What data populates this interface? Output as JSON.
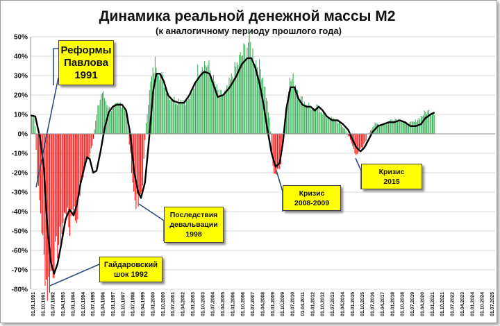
{
  "chart_data": {
    "type": "bar",
    "title": "Динамика реальной денежной массы М2",
    "subtitle": "(к аналогичному  периоду  прошлого  года)",
    "y_unit": "%",
    "ylim": [
      -80,
      50
    ],
    "y_ticks": [
      50,
      40,
      30,
      20,
      10,
      0,
      -10,
      -20,
      -30,
      -40,
      -50,
      -60,
      -70,
      -80
    ],
    "y_tick_labels": [
      "50%",
      "40%",
      "30%",
      "20%",
      "10%",
      "0%",
      "-10%",
      "-20%",
      "-30%",
      "-40%",
      "-50%",
      "-60%",
      "-70%",
      "-80%"
    ],
    "x_tick_labels": [
      "01.01.1991",
      "01.10.1991",
      "01.07.1992",
      "01.04.1993",
      "01.01.1994",
      "01.10.1994",
      "01.07.1995",
      "01.04.1996",
      "01.01.1997",
      "01.10.1997",
      "01.07.1998",
      "01.04.1999",
      "01.01.2000",
      "01.10.2000",
      "01.07.2001",
      "01.04.2002",
      "01.01.2003",
      "01.10.2003",
      "01.07.2004",
      "01.04.2005",
      "01.01.2006",
      "01.10.2006",
      "01.07.2007",
      "01.04.2008",
      "01.01.2009",
      "01.10.2009",
      "01.07.2010",
      "01.04.2011",
      "01.01.2012",
      "01.10.2012",
      "01.07.2013",
      "01.04.2014",
      "01.01.2015",
      "01.10.2015",
      "01.07.2016",
      "01.04.2017",
      "01.01.2018",
      "01.10.2018",
      "01.07.2019",
      "01.04.2020",
      "01.01.2021",
      "01.10.2021",
      "01.07.2022",
      "01.04.2023",
      "01.01.2024",
      "01.10.2024",
      "01.07.2025"
    ],
    "x_start_year": 1991.0,
    "x_end_year": 2025.5,
    "positive_color": "#2eaa4e",
    "negative_color": "#ff0000",
    "line_color": "#000000",
    "grid": true,
    "bars_key_points": [
      [
        1991.0,
        10
      ],
      [
        1991.3,
        9
      ],
      [
        1991.55,
        -28
      ],
      [
        1991.75,
        -40
      ],
      [
        1992.0,
        -65
      ],
      [
        1992.25,
        -80
      ],
      [
        1992.5,
        -72
      ],
      [
        1992.75,
        -66
      ],
      [
        1993.0,
        -58
      ],
      [
        1993.3,
        -52
      ],
      [
        1993.6,
        -38
      ],
      [
        1993.9,
        -50
      ],
      [
        1994.1,
        -36
      ],
      [
        1994.4,
        -45
      ],
      [
        1994.7,
        -28
      ],
      [
        1995.0,
        -18
      ],
      [
        1995.3,
        -12
      ],
      [
        1995.6,
        -5
      ],
      [
        1995.8,
        5
      ],
      [
        1996.0,
        13
      ],
      [
        1996.3,
        22
      ],
      [
        1996.6,
        17
      ],
      [
        1996.9,
        12
      ],
      [
        1997.3,
        14
      ],
      [
        1997.7,
        16
      ],
      [
        1998.1,
        12
      ],
      [
        1998.4,
        -10
      ],
      [
        1998.7,
        -33
      ],
      [
        1999.0,
        -37
      ],
      [
        1999.3,
        -28
      ],
      [
        1999.6,
        8
      ],
      [
        1999.9,
        25
      ],
      [
        2000.3,
        38
      ],
      [
        2000.7,
        30
      ],
      [
        2001.0,
        25
      ],
      [
        2001.4,
        19
      ],
      [
        2001.8,
        17
      ],
      [
        2002.2,
        18
      ],
      [
        2002.6,
        17
      ],
      [
        2003.0,
        20
      ],
      [
        2003.4,
        32
      ],
      [
        2003.8,
        37
      ],
      [
        2004.2,
        35
      ],
      [
        2004.6,
        27
      ],
      [
        2005.0,
        20
      ],
      [
        2005.5,
        21
      ],
      [
        2006.0,
        30
      ],
      [
        2006.5,
        38
      ],
      [
        2006.9,
        43
      ],
      [
        2007.2,
        48
      ],
      [
        2007.5,
        42
      ],
      [
        2007.9,
        35
      ],
      [
        2008.2,
        32
      ],
      [
        2008.5,
        20
      ],
      [
        2008.8,
        5
      ],
      [
        2009.0,
        -18
      ],
      [
        2009.3,
        -21
      ],
      [
        2009.6,
        -14
      ],
      [
        2009.9,
        8
      ],
      [
        2010.2,
        27
      ],
      [
        2010.5,
        28
      ],
      [
        2010.8,
        24
      ],
      [
        2011.1,
        18
      ],
      [
        2011.4,
        16
      ],
      [
        2011.7,
        15
      ],
      [
        2012.0,
        11
      ],
      [
        2012.3,
        14
      ],
      [
        2012.6,
        12
      ],
      [
        2012.9,
        9
      ],
      [
        2013.3,
        8
      ],
      [
        2013.7,
        7
      ],
      [
        2014.0,
        5
      ],
      [
        2014.3,
        3
      ],
      [
        2014.6,
        -1
      ],
      [
        2014.9,
        -6
      ],
      [
        2015.1,
        -10
      ],
      [
        2015.4,
        -9
      ],
      [
        2015.7,
        -7
      ],
      [
        2016.0,
        -1
      ],
      [
        2016.3,
        3
      ],
      [
        2016.6,
        5
      ],
      [
        2017.0,
        5
      ],
      [
        2017.5,
        6
      ],
      [
        2018.0,
        8
      ],
      [
        2018.5,
        7
      ],
      [
        2019.0,
        5
      ],
      [
        2019.5,
        6
      ],
      [
        2020.0,
        9
      ],
      [
        2020.3,
        11
      ],
      [
        2020.7,
        12
      ],
      [
        2021.0,
        11
      ]
    ],
    "trend_line_points": [
      [
        1991.0,
        9.5
      ],
      [
        1991.35,
        9
      ],
      [
        1991.7,
        -2
      ],
      [
        1992.0,
        -18
      ],
      [
        1992.25,
        -48
      ],
      [
        1992.5,
        -66
      ],
      [
        1992.75,
        -72
      ],
      [
        1993.0,
        -67
      ],
      [
        1993.3,
        -56
      ],
      [
        1993.6,
        -44
      ],
      [
        1993.9,
        -39
      ],
      [
        1994.2,
        -42
      ],
      [
        1994.45,
        -36
      ],
      [
        1994.7,
        -26
      ],
      [
        1995.0,
        -17
      ],
      [
        1995.2,
        -12
      ],
      [
        1995.4,
        -13
      ],
      [
        1995.65,
        -20
      ],
      [
        1995.9,
        -19
      ],
      [
        1996.2,
        -9
      ],
      [
        1996.5,
        3
      ],
      [
        1996.8,
        11
      ],
      [
        1997.1,
        14
      ],
      [
        1997.4,
        15
      ],
      [
        1997.8,
        15
      ],
      [
        1998.1,
        12
      ],
      [
        1998.4,
        0
      ],
      [
        1998.7,
        -20
      ],
      [
        1999.0,
        -30
      ],
      [
        1999.2,
        -33
      ],
      [
        1999.5,
        -25
      ],
      [
        1999.8,
        -3
      ],
      [
        2000.1,
        22
      ],
      [
        2000.35,
        31
      ],
      [
        2000.6,
        31
      ],
      [
        2000.9,
        27
      ],
      [
        2001.2,
        20
      ],
      [
        2001.6,
        17
      ],
      [
        2002.0,
        16
      ],
      [
        2002.4,
        16
      ],
      [
        2002.8,
        20
      ],
      [
        2003.2,
        26
      ],
      [
        2003.6,
        30
      ],
      [
        2003.9,
        32
      ],
      [
        2004.3,
        31
      ],
      [
        2004.6,
        25
      ],
      [
        2004.9,
        19
      ],
      [
        2005.3,
        20
      ],
      [
        2005.8,
        24
      ],
      [
        2006.3,
        30
      ],
      [
        2006.7,
        36
      ],
      [
        2007.1,
        39
      ],
      [
        2007.4,
        39
      ],
      [
        2007.7,
        34
      ],
      [
        2008.0,
        26
      ],
      [
        2008.3,
        15
      ],
      [
        2008.6,
        2
      ],
      [
        2008.9,
        -10
      ],
      [
        2009.2,
        -17
      ],
      [
        2009.5,
        -15
      ],
      [
        2009.75,
        -4
      ],
      [
        2010.0,
        13
      ],
      [
        2010.3,
        24
      ],
      [
        2010.6,
        24
      ],
      [
        2010.9,
        18
      ],
      [
        2011.2,
        15
      ],
      [
        2011.5,
        14
      ],
      [
        2011.8,
        14
      ],
      [
        2012.1,
        12
      ],
      [
        2012.4,
        14
      ],
      [
        2012.7,
        12
      ],
      [
        2013.0,
        9
      ],
      [
        2013.4,
        7
      ],
      [
        2013.8,
        7
      ],
      [
        2014.2,
        5
      ],
      [
        2014.6,
        2
      ],
      [
        2014.9,
        -3
      ],
      [
        2015.2,
        -7
      ],
      [
        2015.5,
        -9
      ],
      [
        2015.8,
        -7
      ],
      [
        2016.1,
        -3
      ],
      [
        2016.4,
        1
      ],
      [
        2016.8,
        4
      ],
      [
        2017.2,
        5
      ],
      [
        2017.6,
        6
      ],
      [
        2018.0,
        6
      ],
      [
        2018.4,
        7
      ],
      [
        2018.8,
        6
      ],
      [
        2019.2,
        4
      ],
      [
        2019.6,
        4
      ],
      [
        2020.0,
        5
      ],
      [
        2020.3,
        8
      ],
      [
        2020.7,
        10
      ],
      [
        2021.0,
        11
      ]
    ]
  },
  "annotations": [
    {
      "id": "reforms",
      "lines": [
        "Реформы",
        "Павлова",
        "1991"
      ]
    },
    {
      "id": "gaidar",
      "lines": [
        "Гайдаровский",
        "шок 1992"
      ]
    },
    {
      "id": "devaluation",
      "lines": [
        "Последствия",
        "девальвации",
        "1998"
      ]
    },
    {
      "id": "crisis2008",
      "lines": [
        "Кризис",
        "2008-2009"
      ]
    },
    {
      "id": "crisis2015",
      "lines": [
        "Кризис",
        "2015"
      ]
    }
  ]
}
